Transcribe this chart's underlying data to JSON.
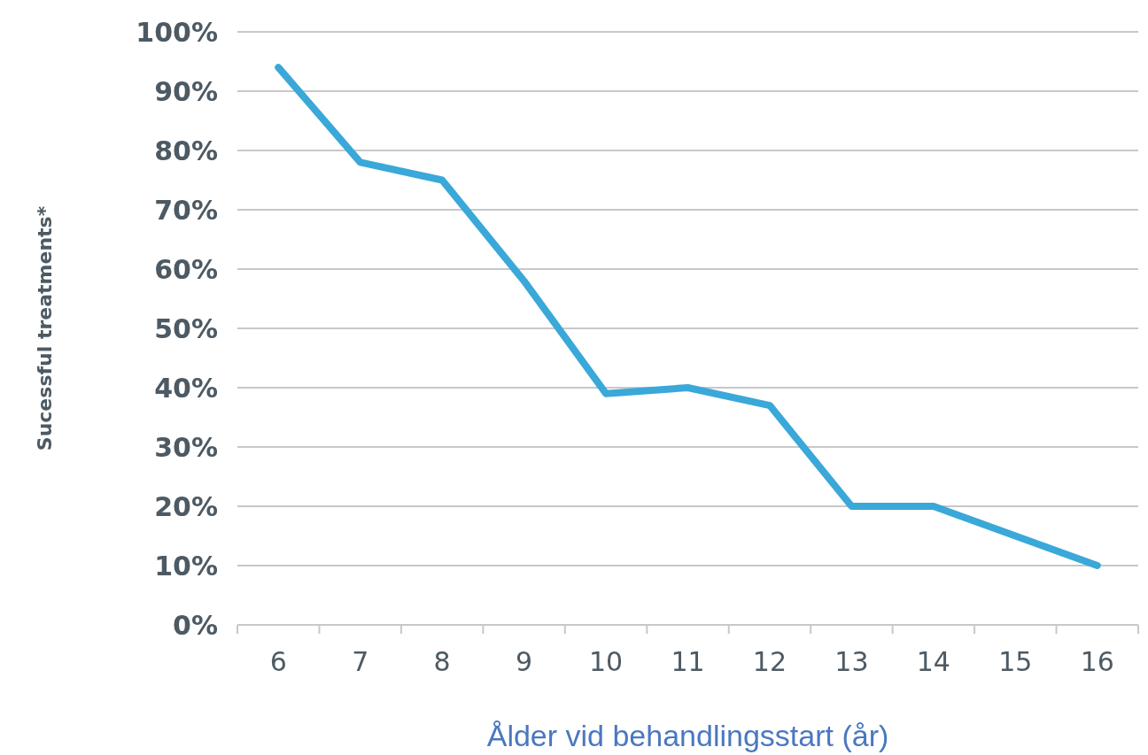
{
  "chart_data": {
    "type": "line",
    "xlabel": "Ålder vid behandlingsstart (år)",
    "ylabel": "Sucessful treatments*",
    "categories": [
      "6",
      "7",
      "8",
      "9",
      "10",
      "11",
      "12",
      "13",
      "14",
      "15",
      "16"
    ],
    "series": [
      {
        "color": "#3aa8d8",
        "values": [
          94,
          78,
          75,
          58,
          39,
          40,
          37,
          20,
          20,
          15,
          10
        ]
      }
    ],
    "ylim": [
      0,
      100
    ],
    "yticks": [
      {
        "value": 0,
        "label": "0%"
      },
      {
        "value": 10,
        "label": "10%"
      },
      {
        "value": 20,
        "label": "20%"
      },
      {
        "value": 30,
        "label": "30%"
      },
      {
        "value": 40,
        "label": "40%"
      },
      {
        "value": 50,
        "label": "50%"
      },
      {
        "value": 60,
        "label": "60%"
      },
      {
        "value": 70,
        "label": "70%"
      },
      {
        "value": 80,
        "label": "80%"
      },
      {
        "value": 90,
        "label": "90%"
      },
      {
        "value": 100,
        "label": "100%"
      }
    ],
    "grid": "y",
    "marker": "none",
    "line_style": "solid"
  }
}
